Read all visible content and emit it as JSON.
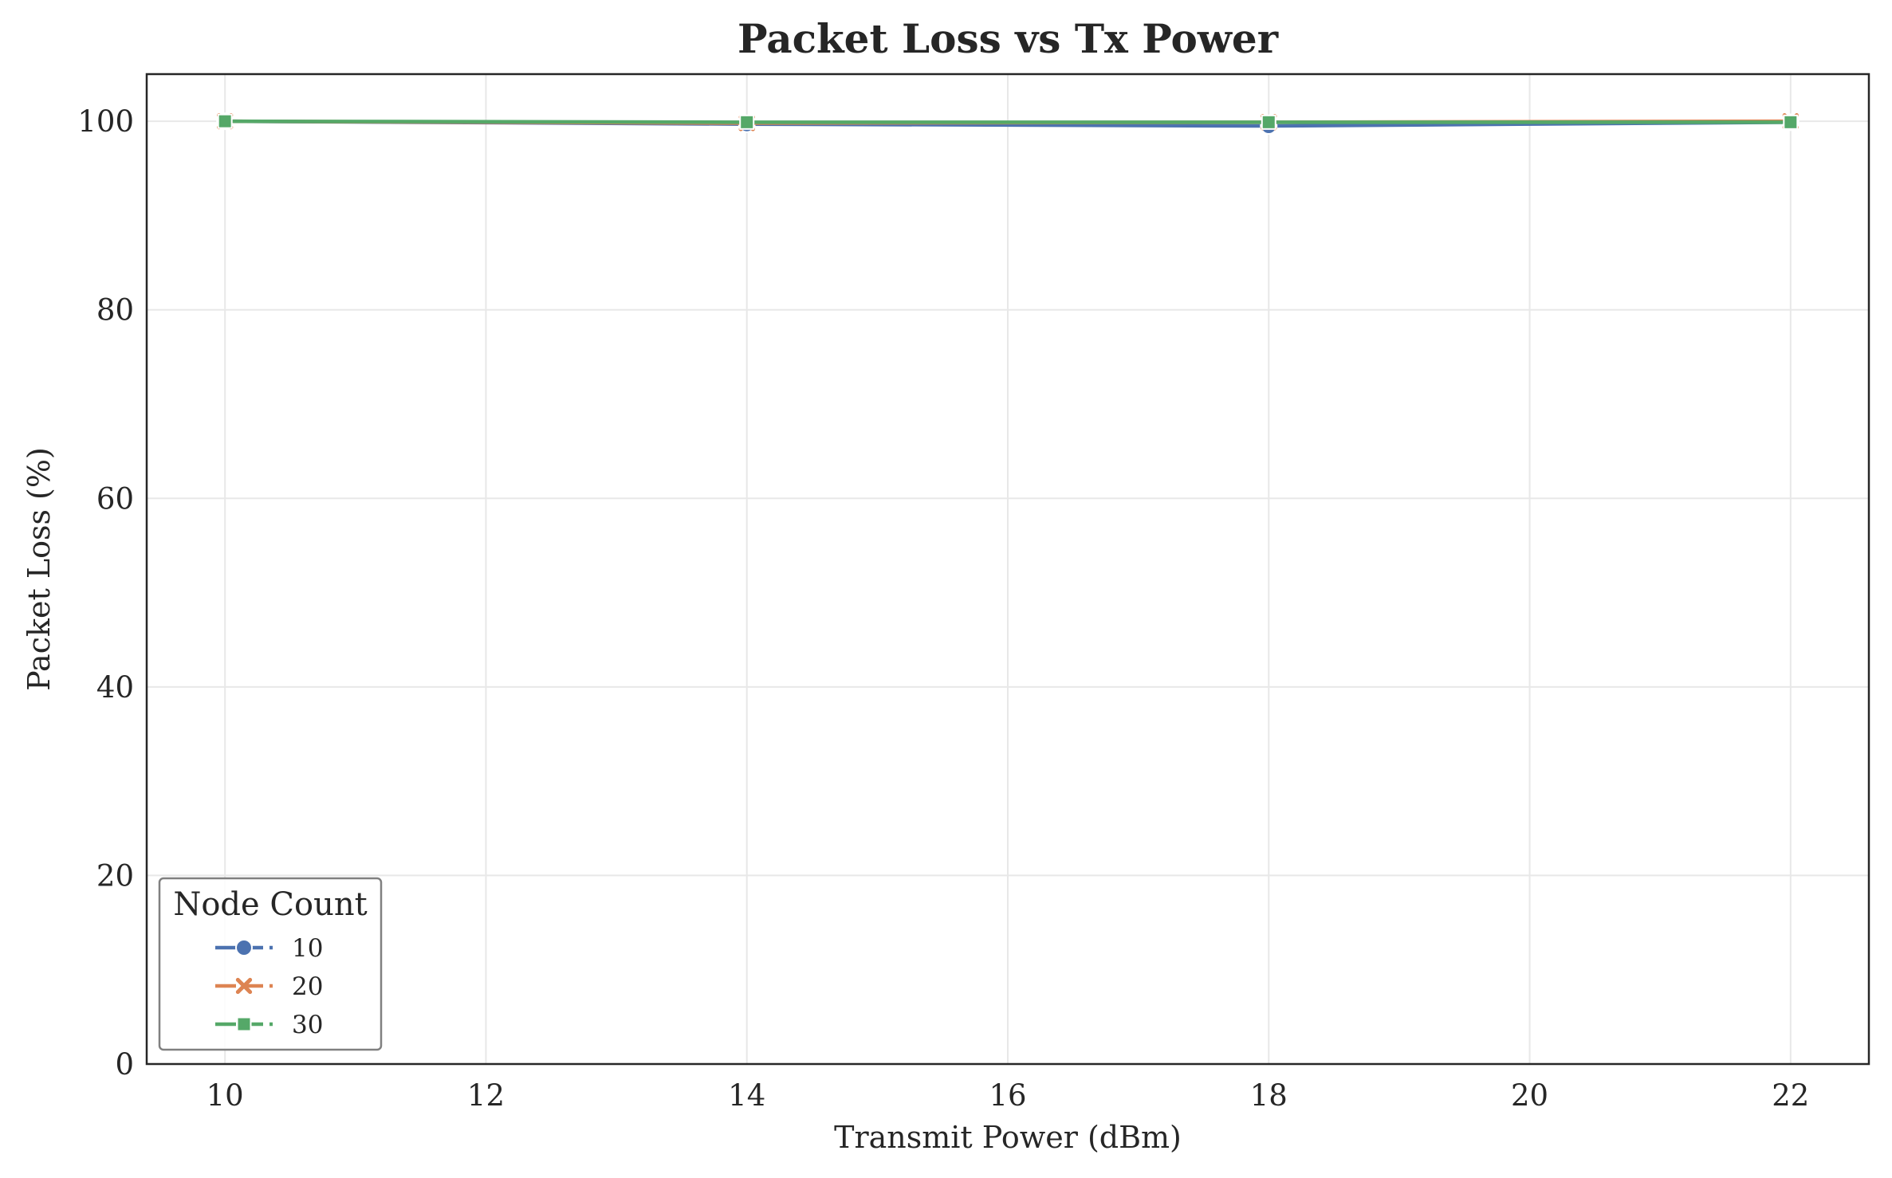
{
  "chart_data": {
    "type": "line",
    "title": "Packet Loss vs Tx Power",
    "xlabel": "Transmit Power (dBm)",
    "ylabel": "Packet Loss (%)",
    "xlim": [
      9.4,
      22.6
    ],
    "ylim": [
      0,
      105
    ],
    "xticks": [
      10,
      12,
      14,
      16,
      18,
      20,
      22
    ],
    "yticks": [
      0,
      20,
      40,
      60,
      80,
      100
    ],
    "grid": true,
    "legend": {
      "title": "Node Count",
      "placement": "lower-left"
    },
    "series": [
      {
        "name": "10",
        "color": "#4c72b0",
        "marker": "circle",
        "points": [
          [
            10,
            100.0
          ],
          [
            14,
            99.7
          ],
          [
            18,
            99.5
          ],
          [
            22,
            99.9
          ]
        ]
      },
      {
        "name": "20",
        "color": "#dd8452",
        "marker": "x",
        "points": [
          [
            10,
            100.0
          ],
          [
            14,
            99.8
          ],
          [
            18,
            99.9
          ],
          [
            22,
            100.0
          ]
        ]
      },
      {
        "name": "30",
        "color": "#55a868",
        "marker": "square",
        "points": [
          [
            10,
            100.0
          ],
          [
            14,
            99.9
          ],
          [
            18,
            99.9
          ],
          [
            22,
            99.9
          ]
        ]
      }
    ]
  }
}
